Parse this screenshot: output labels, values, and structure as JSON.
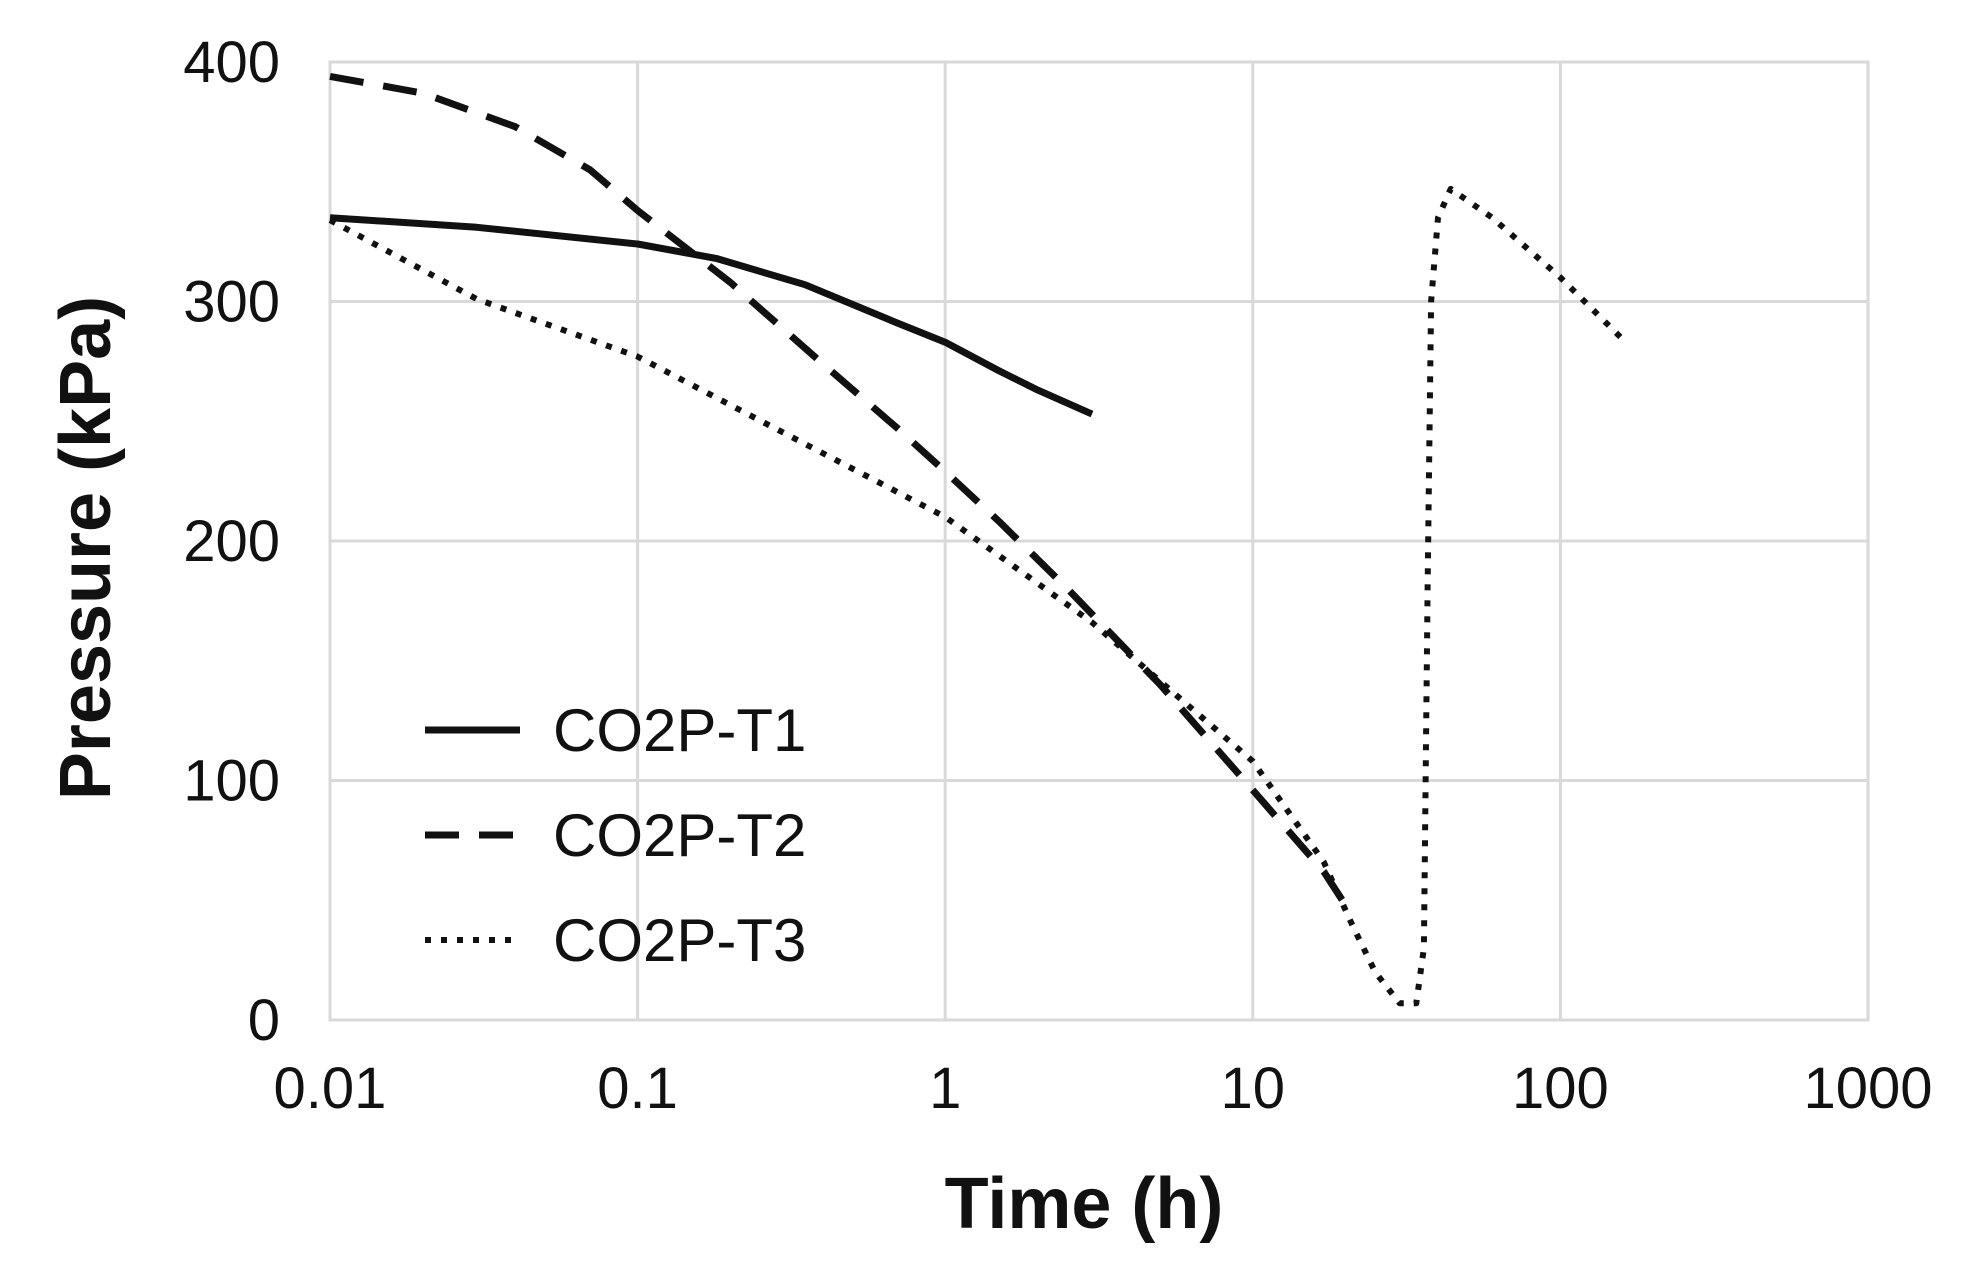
{
  "chart_data": {
    "type": "line",
    "title": "",
    "xlabel": "Time (h)",
    "ylabel": "Pressure (kPa)",
    "xscale": "log",
    "xlim": [
      0.01,
      1000
    ],
    "ylim": [
      0,
      400
    ],
    "xticks": [
      "0.01",
      "0.1",
      "1",
      "10",
      "100",
      "1000"
    ],
    "yticks": [
      "0",
      "100",
      "200",
      "300",
      "400"
    ],
    "grid": true,
    "legend": {
      "position": "lower-left"
    },
    "series": [
      {
        "name": "CO2P-T1",
        "style": "solid",
        "x": [
          0.01,
          0.03,
          0.1,
          0.18,
          0.35,
          0.7,
          1.0,
          1.5,
          2.0,
          3.0
        ],
        "y": [
          335,
          331,
          324,
          318,
          307,
          291,
          283,
          271,
          263,
          253
        ]
      },
      {
        "name": "CO2P-T2",
        "style": "dashed",
        "x": [
          0.01,
          0.02,
          0.04,
          0.07,
          0.1,
          0.2,
          0.4,
          0.7,
          1.0,
          1.5,
          2.5,
          5,
          10,
          17,
          20
        ],
        "y": [
          394,
          387,
          373,
          355,
          338,
          308,
          274,
          247,
          229,
          208,
          180,
          140,
          96,
          62,
          48
        ]
      },
      {
        "name": "CO2P-T3",
        "style": "dotted",
        "x": [
          0.01,
          0.03,
          0.1,
          0.3,
          1.0,
          3.0,
          10,
          17,
          21,
          25,
          30,
          34,
          36,
          37,
          38,
          40,
          44,
          60,
          100,
          160
        ],
        "y": [
          334,
          301,
          277,
          245,
          210,
          166,
          108,
          66,
          40,
          20,
          7,
          7,
          30,
          180,
          300,
          335,
          347,
          335,
          310,
          284
        ]
      }
    ]
  },
  "colors": {
    "line": "#111111",
    "grid": "#d9d9d9"
  }
}
